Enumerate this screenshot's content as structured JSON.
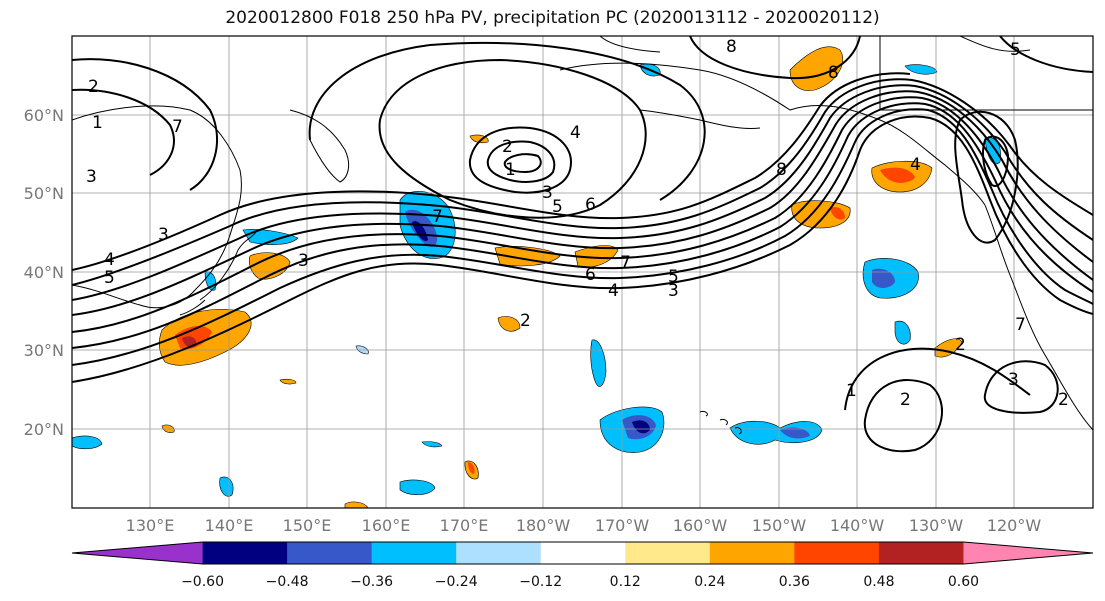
{
  "title": "2020012800 F018 250 hPa PV, precipitation PC (2020013112 - 2020020112)",
  "latitude_labels": [
    "60°N",
    "50°N",
    "40°N",
    "30°N",
    "20°N"
  ],
  "longitude_labels": [
    "130°E",
    "140°E",
    "150°E",
    "160°E",
    "170°E",
    "180°W",
    "170°W",
    "160°W",
    "150°W",
    "140°W",
    "130°W",
    "120°W"
  ],
  "pv_contour_labels": [
    "1",
    "2",
    "3",
    "4",
    "5",
    "6",
    "7",
    "8"
  ],
  "colorbar": {
    "ticks": [
      "−0.60",
      "−0.48",
      "−0.36",
      "−0.24",
      "−0.12",
      "0.12",
      "0.24",
      "0.36",
      "0.48",
      "0.60"
    ],
    "colors": [
      "#9932CC",
      "#000080",
      "#3658C8",
      "#00BFFF",
      "#ADE0FF",
      "#FFFFFF",
      "#FFE98A",
      "#FFA500",
      "#FF4500",
      "#B22222",
      "#FF85B0"
    ]
  },
  "contour_line_color": "#000000",
  "coastline_color": "#000000",
  "grid_color": "#999999"
}
